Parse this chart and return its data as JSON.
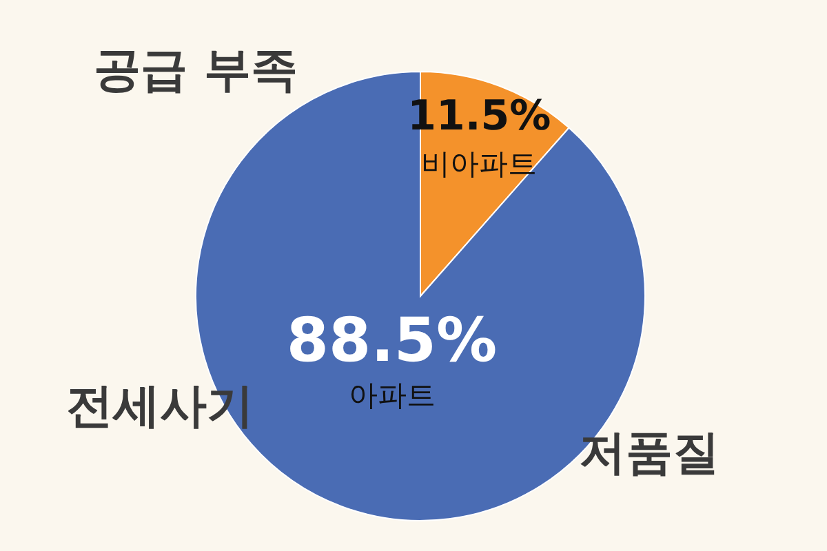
{
  "chart_data": {
    "type": "pie",
    "categories": [
      "비아파트",
      "아파트"
    ],
    "values": [
      11.5,
      88.5
    ],
    "colors": [
      "#f4922b",
      "#4a6cb4"
    ],
    "value_labels": [
      "11.5%",
      "88.5%"
    ],
    "annotations": [
      "공급 부족",
      "전세사기",
      "저품질"
    ],
    "legend": false
  }
}
